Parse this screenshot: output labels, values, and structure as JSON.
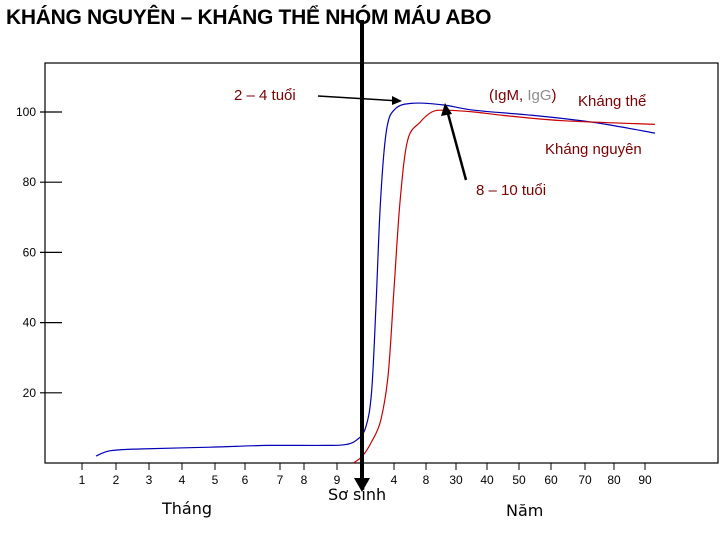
{
  "title": "KHÁNG NGUYÊN – KHÁNG THỂ NHÓM MÁU ABO",
  "chart_data": {
    "type": "line",
    "title": "KHÁNG NGUYÊN – KHÁNG THỂ NHÓM MÁU ABO",
    "y_ticks": [
      20,
      40,
      60,
      80,
      100
    ],
    "ylim": [
      0,
      110
    ],
    "x_ticks_months": [
      "1",
      "2",
      "3",
      "4",
      "5",
      "6",
      "7",
      "8",
      "9"
    ],
    "x_ticks_years": [
      "4",
      "8",
      "30",
      "40",
      "50",
      "60",
      "70",
      "80",
      "90"
    ],
    "xlabel_months": "Tháng",
    "xlabel_birth": "Sơ sinh",
    "xlabel_years": "Năm",
    "series": [
      {
        "name": "Kháng nguyên",
        "color": "#0000b4",
        "points": [
          [
            0.0,
            2
          ],
          [
            0.5,
            3.5
          ],
          [
            1.5,
            4
          ],
          [
            4,
            4.5
          ],
          [
            6,
            5
          ],
          [
            8,
            5
          ],
          [
            8.7,
            5.2
          ],
          [
            9.1,
            6.5
          ],
          [
            9.4,
            10
          ],
          [
            9.6,
            20
          ],
          [
            9.75,
            45
          ],
          [
            9.9,
            75
          ],
          [
            10.1,
            95
          ],
          [
            10.4,
            101
          ],
          [
            11,
            102.5
          ],
          [
            12,
            102
          ],
          [
            13,
            100.5
          ],
          [
            15,
            99
          ],
          [
            17,
            97
          ],
          [
            19,
            94
          ]
        ]
      },
      {
        "name": "Kháng thể",
        "color": "#c80000",
        "points": [
          [
            9.0,
            0
          ],
          [
            9.3,
            2
          ],
          [
            9.6,
            6
          ],
          [
            9.9,
            12
          ],
          [
            10.15,
            25
          ],
          [
            10.35,
            50
          ],
          [
            10.55,
            75
          ],
          [
            10.8,
            92
          ],
          [
            11.2,
            97
          ],
          [
            11.6,
            100
          ],
          [
            12,
            100.5
          ],
          [
            13,
            100
          ],
          [
            14,
            99
          ],
          [
            16,
            97.5
          ],
          [
            19,
            96.5
          ]
        ]
      }
    ],
    "annotations": [
      {
        "text": "2 – 4 tuổi",
        "arrow_to_series": "Kháng nguyên"
      },
      {
        "text": "(IgM, IgG)",
        "parts": [
          "(Ig",
          "M",
          ", ",
          "Ig",
          "G",
          ")"
        ]
      },
      {
        "text": "Kháng thể"
      },
      {
        "text": "Kháng nguyên"
      },
      {
        "text": "8 – 10 tuổi",
        "arrow_to_series": "Kháng thể"
      }
    ],
    "grid": false
  },
  "labels": {
    "ann_2_4": "2 – 4 tuổi",
    "ann_igm_open": "(Ig",
    "ann_igm_m": "M, ",
    "ann_igg_ig": "Ig",
    "ann_igg_g": "G",
    "ann_igg_close": ")",
    "ann_khang_the": "Kháng thể",
    "ann_khang_nguyen": "Kháng nguyên",
    "ann_8_10": "8 – 10 tuổi"
  },
  "colors": {
    "antigen": "#0000b4",
    "antibody": "#c80000",
    "annotation": "#7a0000",
    "igg": "#8c8c8c",
    "birth_line": "#000000"
  }
}
